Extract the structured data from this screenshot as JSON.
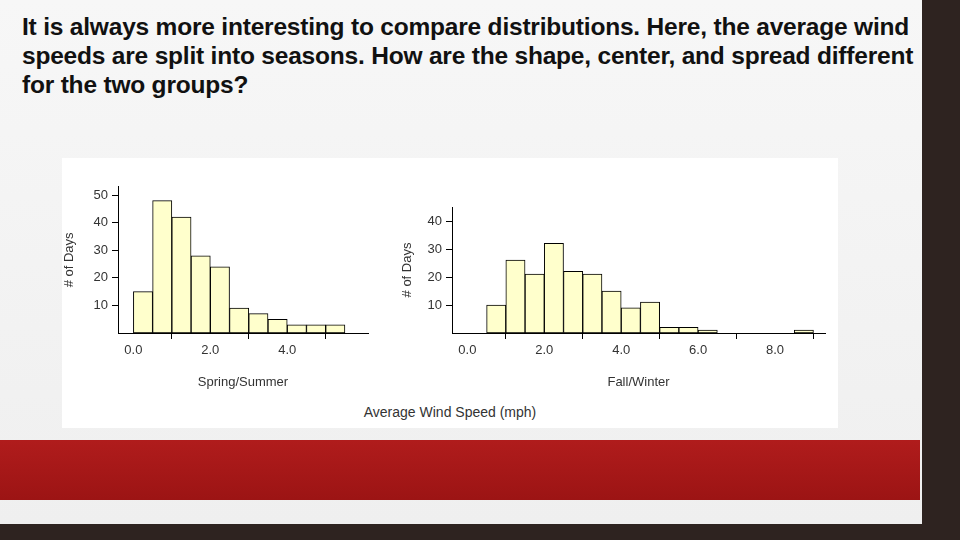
{
  "title": "It is always more interesting to compare distributions. Here, the average wind speeds are split into seasons. How are the shape, center, and spread different for the two groups?",
  "xlabel": "Average Wind Speed (mph)",
  "chart_data": [
    {
      "type": "histogram",
      "xlabel": "Spring/Summer",
      "ylabel": "# of Days",
      "color": "#ffffcc",
      "grid": false,
      "bins": [
        0,
        0.5,
        1,
        1.5,
        2,
        2.5,
        3,
        3.5,
        4,
        4.5,
        5,
        5.5
      ],
      "values": [
        15,
        48,
        42,
        28,
        24,
        9,
        7,
        5,
        3,
        3,
        3
      ],
      "xlim": [
        -0.4,
        6.1
      ],
      "ylim": [
        0,
        53
      ],
      "xticks": [
        {
          "value": 0,
          "label": "0.0"
        },
        {
          "value": 2,
          "label": "2.0"
        },
        {
          "value": 4,
          "label": "4.0"
        }
      ],
      "yticks": [
        10,
        20,
        30,
        40,
        50
      ]
    },
    {
      "type": "histogram",
      "xlabel": "Fall/Winter",
      "ylabel": "# of Days",
      "color": "#ffffcc",
      "grid": false,
      "bins": [
        0.5,
        1,
        1.5,
        2,
        2.5,
        3,
        3.5,
        4,
        4.5,
        5,
        5.5,
        6,
        6.5,
        7,
        7.5,
        8,
        8.5,
        9
      ],
      "values": [
        10,
        26,
        21,
        32,
        22,
        21,
        15,
        9,
        11,
        2,
        2,
        1,
        0,
        0,
        0,
        0,
        1
      ],
      "xlim": [
        -0.4,
        9.3
      ],
      "ylim": [
        0,
        45
      ],
      "xticks": [
        {
          "value": 0,
          "label": "0.0"
        },
        {
          "value": 2,
          "label": "2.0"
        },
        {
          "value": 4,
          "label": "4.0"
        },
        {
          "value": 6,
          "label": "6.0"
        },
        {
          "value": 8,
          "label": "8.0"
        }
      ],
      "yticks": [
        10,
        20,
        30,
        40
      ]
    }
  ]
}
